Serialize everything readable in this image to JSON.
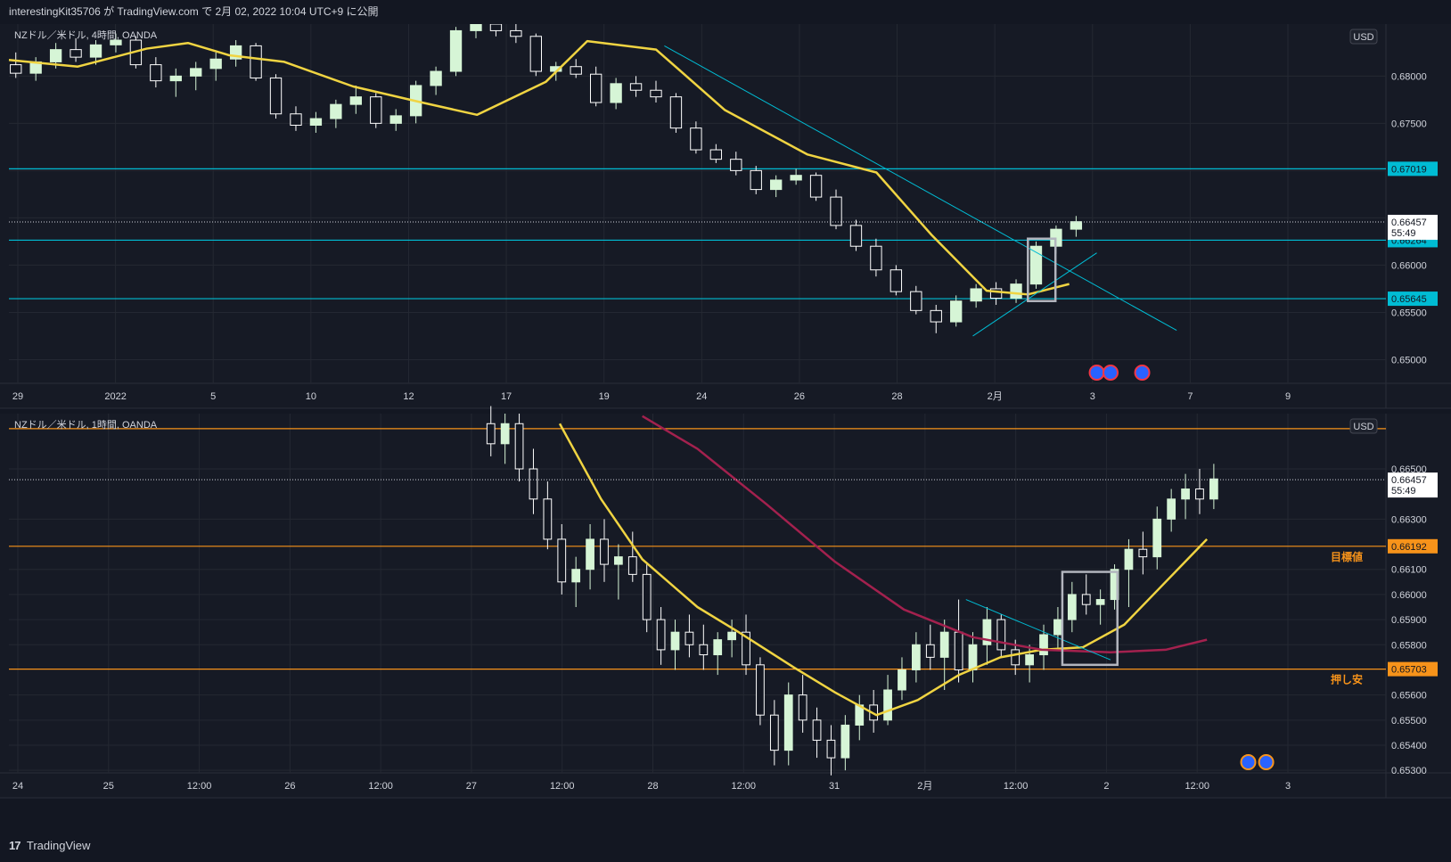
{
  "header": {
    "text": "interestingKit35706 が TradingView.com で 2月 02, 2022 10:04 UTC+9 に公開"
  },
  "footer": {
    "logo": "17",
    "brand": "TradingView"
  },
  "colors": {
    "bg": "#131722",
    "up": "#d6f5d6",
    "down": "#ffffff",
    "sma_yellow": "#f0d442",
    "sma_maroon": "#a3214e",
    "cyan": "#00bcd4",
    "orange": "#f7931a"
  },
  "chart_data": [
    {
      "type": "candlestick",
      "title": "NZドル／米ドル, 4時間, OANDA",
      "currency": "USD",
      "x_ticks": [
        "29",
        "2022",
        "5",
        "10",
        "12",
        "17",
        "19",
        "24",
        "26",
        "28",
        "2月",
        "3",
        "7",
        "9"
      ],
      "y_ticks": [
        "0.68000",
        "0.67500",
        "0.67000",
        "0.66500",
        "0.66000",
        "0.65500",
        "0.65000"
      ],
      "ylim": [
        0.6475,
        0.6855
      ],
      "horizontal_lines": [
        {
          "value": 0.67019,
          "label": "0.67019",
          "color": "#00bcd4"
        },
        {
          "value": 0.66264,
          "label": "0.66264",
          "color": "#00bcd4"
        },
        {
          "value": 0.65645,
          "label": "0.65645",
          "color": "#00bcd4"
        }
      ],
      "last_price": {
        "value": 0.66457,
        "label": "0.66457",
        "countdown": "55:49"
      },
      "trendlines": [
        {
          "x": [
            0.476,
            0.848
          ],
          "y": [
            0.6832,
            0.6531
          ]
        },
        {
          "x": [
            0.7,
            0.79
          ],
          "y": [
            0.6525,
            0.6613
          ]
        }
      ],
      "box": {
        "x": [
          0.74,
          0.76
        ],
        "y": [
          0.6562,
          0.6628
        ]
      },
      "sma": {
        "x": [
          0.0,
          0.05,
          0.1,
          0.13,
          0.16,
          0.2,
          0.25,
          0.3,
          0.34,
          0.39,
          0.42,
          0.47,
          0.52,
          0.58,
          0.63,
          0.67,
          0.71,
          0.74,
          0.77
        ],
        "y": [
          0.6817,
          0.681,
          0.6829,
          0.6835,
          0.6822,
          0.6815,
          0.6789,
          0.6772,
          0.6759,
          0.6794,
          0.6837,
          0.6828,
          0.6764,
          0.6717,
          0.6698,
          0.6632,
          0.6573,
          0.6569,
          0.658
        ]
      },
      "candles": [
        [
          0.6812,
          0.6825,
          0.6798,
          0.6803
        ],
        [
          0.6803,
          0.682,
          0.6795,
          0.6815
        ],
        [
          0.6815,
          0.6835,
          0.6808,
          0.6828
        ],
        [
          0.6828,
          0.684,
          0.6815,
          0.682
        ],
        [
          0.682,
          0.6838,
          0.6812,
          0.6833
        ],
        [
          0.6833,
          0.6845,
          0.6825,
          0.6838
        ],
        [
          0.6838,
          0.6842,
          0.6808,
          0.6812
        ],
        [
          0.6812,
          0.682,
          0.6788,
          0.6795
        ],
        [
          0.6795,
          0.6808,
          0.6778,
          0.68
        ],
        [
          0.68,
          0.6815,
          0.6785,
          0.6808
        ],
        [
          0.6808,
          0.6825,
          0.6795,
          0.6818
        ],
        [
          0.6818,
          0.6838,
          0.681,
          0.6832
        ],
        [
          0.6832,
          0.6835,
          0.6795,
          0.6798
        ],
        [
          0.6798,
          0.6802,
          0.6755,
          0.676
        ],
        [
          0.676,
          0.6768,
          0.6742,
          0.6748
        ],
        [
          0.6748,
          0.6762,
          0.674,
          0.6755
        ],
        [
          0.6755,
          0.6775,
          0.6745,
          0.677
        ],
        [
          0.677,
          0.679,
          0.676,
          0.6778
        ],
        [
          0.6778,
          0.6782,
          0.6745,
          0.675
        ],
        [
          0.675,
          0.6765,
          0.6742,
          0.6758
        ],
        [
          0.6758,
          0.6795,
          0.675,
          0.679
        ],
        [
          0.679,
          0.681,
          0.678,
          0.6805
        ],
        [
          0.6805,
          0.6852,
          0.68,
          0.6848
        ],
        [
          0.6848,
          0.686,
          0.684,
          0.6855
        ],
        [
          0.6855,
          0.6862,
          0.6842,
          0.6848
        ],
        [
          0.6848,
          0.6858,
          0.6835,
          0.6842
        ],
        [
          0.6842,
          0.6845,
          0.68,
          0.6805
        ],
        [
          0.6805,
          0.6815,
          0.6795,
          0.681
        ],
        [
          0.681,
          0.6818,
          0.6798,
          0.6802
        ],
        [
          0.6802,
          0.681,
          0.6768,
          0.6772
        ],
        [
          0.6772,
          0.6798,
          0.6765,
          0.6792
        ],
        [
          0.6792,
          0.68,
          0.6778,
          0.6785
        ],
        [
          0.6785,
          0.6795,
          0.6772,
          0.6778
        ],
        [
          0.6778,
          0.6782,
          0.674,
          0.6745
        ],
        [
          0.6745,
          0.6752,
          0.6718,
          0.6722
        ],
        [
          0.6722,
          0.6728,
          0.6708,
          0.6712
        ],
        [
          0.6712,
          0.672,
          0.6695,
          0.67
        ],
        [
          0.67,
          0.6705,
          0.6675,
          0.668
        ],
        [
          0.668,
          0.6695,
          0.6672,
          0.669
        ],
        [
          0.669,
          0.6702,
          0.6685,
          0.6695
        ],
        [
          0.6695,
          0.6698,
          0.6668,
          0.6672
        ],
        [
          0.6672,
          0.668,
          0.6638,
          0.6642
        ],
        [
          0.6642,
          0.6648,
          0.6615,
          0.662
        ],
        [
          0.662,
          0.6628,
          0.6588,
          0.6595
        ],
        [
          0.6595,
          0.66,
          0.6568,
          0.6572
        ],
        [
          0.6572,
          0.6578,
          0.6548,
          0.6552
        ],
        [
          0.6552,
          0.6558,
          0.6528,
          0.654
        ],
        [
          0.654,
          0.6568,
          0.6535,
          0.6562
        ],
        [
          0.6562,
          0.658,
          0.6555,
          0.6575
        ],
        [
          0.6575,
          0.6582,
          0.6558,
          0.6565
        ],
        [
          0.6565,
          0.6585,
          0.656,
          0.658
        ],
        [
          0.658,
          0.6625,
          0.6575,
          0.662
        ],
        [
          0.662,
          0.6642,
          0.6612,
          0.6638
        ],
        [
          0.6638,
          0.6652,
          0.663,
          0.6646
        ]
      ]
    },
    {
      "type": "candlestick",
      "title": "NZドル／米ドル, 1時間, OANDA",
      "currency": "USD",
      "x_ticks": [
        "24",
        "25",
        "12:00",
        "26",
        "12:00",
        "27",
        "12:00",
        "28",
        "12:00",
        "31",
        "2月",
        "12:00",
        "2",
        "12:00",
        "3"
      ],
      "y_ticks": [
        "0.66500",
        "0.66300",
        "0.66100",
        "0.66000",
        "0.65900",
        "0.65800",
        "0.65600",
        "0.65500",
        "0.65400",
        "0.65300"
      ],
      "ylim": [
        0.6529,
        0.6672
      ],
      "horizontal_lines": [
        {
          "value": 0.66192,
          "label": "0.66192",
          "color": "#f7931a",
          "note": "目標値"
        },
        {
          "value": 0.65703,
          "label": "0.65703",
          "color": "#f7931a",
          "note": "押し安"
        },
        {
          "value": 0.6666,
          "label": "",
          "color": "#f7931a"
        }
      ],
      "last_price": {
        "value": 0.66457,
        "label": "0.66457",
        "countdown": "55:49"
      },
      "trendlines": [
        {
          "x": [
            0.695,
            0.8
          ],
          "y": [
            0.6598,
            0.6574
          ]
        }
      ],
      "box": {
        "x": [
          0.765,
          0.805
        ],
        "y": [
          0.6572,
          0.6609
        ]
      },
      "sma": {
        "x": [
          0.4,
          0.43,
          0.46,
          0.5,
          0.53,
          0.57,
          0.6,
          0.63,
          0.66,
          0.69,
          0.72,
          0.75,
          0.78,
          0.81,
          0.84,
          0.87
        ],
        "y": [
          0.6668,
          0.6638,
          0.6614,
          0.6595,
          0.6585,
          0.6571,
          0.6561,
          0.6552,
          0.6558,
          0.6568,
          0.6575,
          0.6578,
          0.6579,
          0.6588,
          0.6605,
          0.6622
        ]
      },
      "sma2": {
        "x": [
          0.46,
          0.5,
          0.55,
          0.6,
          0.65,
          0.7,
          0.75,
          0.8,
          0.84,
          0.87
        ],
        "y": [
          0.6671,
          0.6658,
          0.6636,
          0.6613,
          0.6594,
          0.6583,
          0.6578,
          0.6577,
          0.6578,
          0.6582
        ]
      },
      "candles": [
        [
          0.6668,
          0.6675,
          0.6655,
          0.666
        ],
        [
          0.666,
          0.6672,
          0.6652,
          0.6668
        ],
        [
          0.6668,
          0.6672,
          0.6645,
          0.665
        ],
        [
          0.665,
          0.6658,
          0.6632,
          0.6638
        ],
        [
          0.6638,
          0.6645,
          0.6618,
          0.6622
        ],
        [
          0.6622,
          0.6628,
          0.66,
          0.6605
        ],
        [
          0.6605,
          0.6615,
          0.6595,
          0.661
        ],
        [
          0.661,
          0.6628,
          0.6602,
          0.6622
        ],
        [
          0.6622,
          0.663,
          0.6605,
          0.6612
        ],
        [
          0.6612,
          0.662,
          0.6598,
          0.6615
        ],
        [
          0.6615,
          0.6625,
          0.6605,
          0.6608
        ],
        [
          0.6608,
          0.6612,
          0.6585,
          0.659
        ],
        [
          0.659,
          0.6595,
          0.6572,
          0.6578
        ],
        [
          0.6578,
          0.659,
          0.657,
          0.6585
        ],
        [
          0.6585,
          0.6592,
          0.6575,
          0.658
        ],
        [
          0.658,
          0.6588,
          0.657,
          0.6576
        ],
        [
          0.6576,
          0.6585,
          0.6568,
          0.6582
        ],
        [
          0.6582,
          0.659,
          0.6575,
          0.6585
        ],
        [
          0.6585,
          0.6592,
          0.6568,
          0.6572
        ],
        [
          0.6572,
          0.6575,
          0.6548,
          0.6552
        ],
        [
          0.6552,
          0.6558,
          0.6532,
          0.6538
        ],
        [
          0.6538,
          0.6565,
          0.6532,
          0.656
        ],
        [
          0.656,
          0.6568,
          0.6545,
          0.655
        ],
        [
          0.655,
          0.6555,
          0.6535,
          0.6542
        ],
        [
          0.6542,
          0.6548,
          0.6528,
          0.6535
        ],
        [
          0.6535,
          0.6552,
          0.653,
          0.6548
        ],
        [
          0.6548,
          0.656,
          0.6542,
          0.6556
        ],
        [
          0.6556,
          0.6562,
          0.6545,
          0.655
        ],
        [
          0.655,
          0.6568,
          0.6548,
          0.6562
        ],
        [
          0.6562,
          0.6575,
          0.6558,
          0.657
        ],
        [
          0.657,
          0.6585,
          0.6565,
          0.658
        ],
        [
          0.658,
          0.6588,
          0.657,
          0.6575
        ],
        [
          0.6575,
          0.659,
          0.6562,
          0.6585
        ],
        [
          0.6585,
          0.6598,
          0.6565,
          0.657
        ],
        [
          0.657,
          0.6585,
          0.6565,
          0.658
        ],
        [
          0.658,
          0.6595,
          0.6572,
          0.659
        ],
        [
          0.659,
          0.6592,
          0.6575,
          0.6578
        ],
        [
          0.6578,
          0.6582,
          0.6568,
          0.6572
        ],
        [
          0.6572,
          0.658,
          0.6565,
          0.6576
        ],
        [
          0.6576,
          0.6588,
          0.657,
          0.6584
        ],
        [
          0.6584,
          0.6595,
          0.6578,
          0.659
        ],
        [
          0.659,
          0.6605,
          0.6585,
          0.66
        ],
        [
          0.66,
          0.6608,
          0.6592,
          0.6596
        ],
        [
          0.6596,
          0.6602,
          0.6588,
          0.6598
        ],
        [
          0.6598,
          0.6612,
          0.6594,
          0.661
        ],
        [
          0.661,
          0.6622,
          0.6595,
          0.6618
        ],
        [
          0.6618,
          0.6625,
          0.6608,
          0.6615
        ],
        [
          0.6615,
          0.6635,
          0.661,
          0.663
        ],
        [
          0.663,
          0.6642,
          0.6625,
          0.6638
        ],
        [
          0.6638,
          0.6648,
          0.663,
          0.6642
        ],
        [
          0.6642,
          0.665,
          0.6632,
          0.6638
        ],
        [
          0.6638,
          0.6652,
          0.6634,
          0.6646
        ]
      ]
    }
  ]
}
